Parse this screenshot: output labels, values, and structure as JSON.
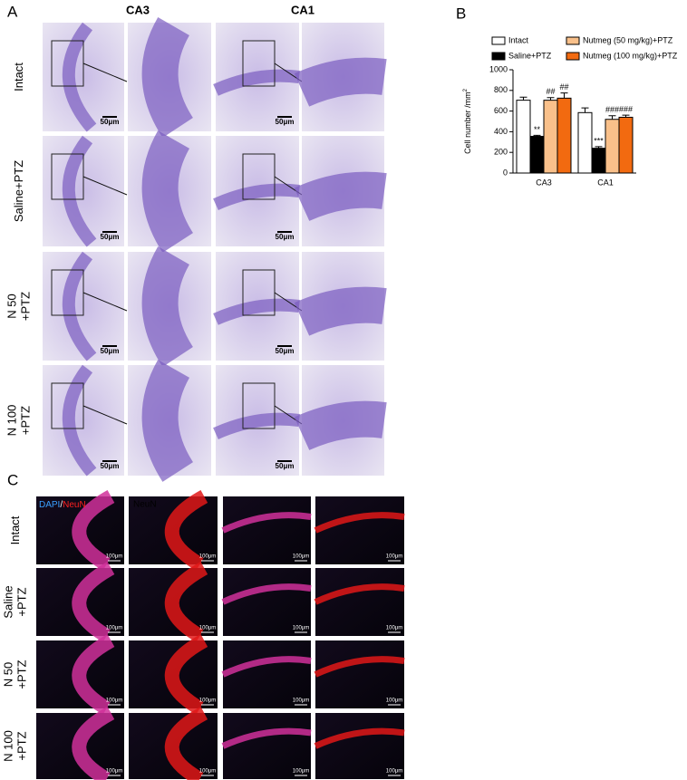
{
  "panel_a": {
    "label": "A",
    "columns": [
      "CA3",
      "CA1"
    ],
    "rows": [
      [
        "Intact"
      ],
      [
        "Saline+PTZ"
      ],
      [
        "N 50",
        "+PTZ"
      ],
      [
        "N 100",
        "+PTZ"
      ]
    ],
    "scale_bar": "50μm"
  },
  "chart_data": {
    "type": "bar",
    "panel_label": "B",
    "ylabel": "Cell number /mm",
    "ylabel_sup": "2",
    "categories": [
      "CA3",
      "CA1"
    ],
    "series": [
      {
        "name": "Intact",
        "color": "#ffffff",
        "values": [
          705,
          585
        ],
        "errors": [
          30,
          45
        ]
      },
      {
        "name": "Saline+PTZ",
        "color": "#000000",
        "values": [
          355,
          240
        ],
        "errors": [
          10,
          15
        ],
        "annotations": [
          "**",
          "***"
        ]
      },
      {
        "name": "Nutmeg (50 mg/kg)+PTZ",
        "color": "#f9c08a",
        "values": [
          705,
          520
        ],
        "errors": [
          25,
          35
        ],
        "annotations": [
          "##",
          "###"
        ]
      },
      {
        "name": "Nutmeg (100 mg/kg)+PTZ",
        "color": "#f26a10",
        "values": [
          725,
          540
        ],
        "errors": [
          50,
          20
        ],
        "annotations": [
          "##",
          "###"
        ]
      }
    ],
    "ylim": [
      0,
      1000
    ],
    "yticks": [
      0,
      200,
      400,
      600,
      800,
      1000
    ]
  },
  "panel_c": {
    "label": "C",
    "rows": [
      [
        "Intact"
      ],
      [
        "Saline",
        "+PTZ"
      ],
      [
        "N 50",
        "+PTZ"
      ],
      [
        "N 100",
        "+PTZ"
      ]
    ],
    "stain_merge": [
      "DAPI",
      "/",
      "NeuN"
    ],
    "stain_single": "NeuN",
    "scale_bar": "100μm"
  }
}
